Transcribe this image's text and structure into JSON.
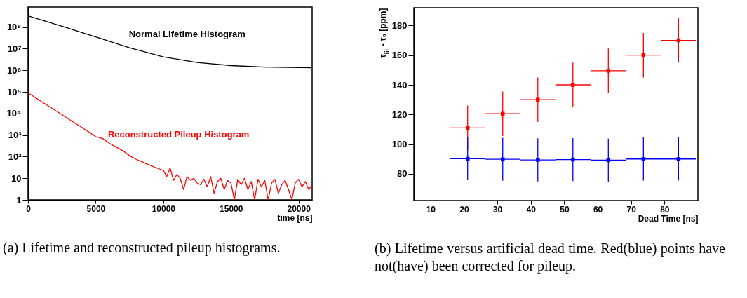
{
  "chart_data": [
    {
      "type": "line",
      "xlabel": "time [ns]",
      "log": "y",
      "grid": false,
      "marker": "none",
      "line_style": "solid",
      "xlim": [
        0,
        21000
      ],
      "xticks": [
        0,
        5000,
        10000,
        15000,
        20000
      ],
      "ylim": [
        1,
        850000000
      ],
      "yticks": [
        1,
        10,
        {
          "value": 100,
          "label": "10²"
        },
        {
          "value": 1000,
          "label": "10³"
        },
        {
          "value": 10000,
          "label": "10⁴"
        },
        {
          "value": 100000,
          "label": "10⁵"
        },
        {
          "value": 1000000,
          "label": "10⁶"
        },
        {
          "value": 10000000,
          "label": "10⁷"
        },
        {
          "value": 100000000,
          "label": "10⁸"
        }
      ],
      "series": [
        {
          "name": "Normal Lifetime Histogram",
          "color": "#000000",
          "x": [
            0,
            2500,
            5000,
            7500,
            10000,
            12500,
            15000,
            17500,
            21000
          ],
          "values": [
            330000000,
            110000000,
            35000000,
            11000000,
            4200000,
            2300000,
            1650000,
            1400000,
            1300000
          ]
        },
        {
          "name": "Reconstructed Pileup Histogram",
          "color": "#ff0000",
          "x": [
            0,
            1000,
            2000,
            3000,
            4000,
            5000,
            5500,
            6000,
            6500,
            7000,
            7500,
            8000,
            8500,
            9000,
            9500,
            10000,
            10250,
            10500,
            10750,
            11000,
            11250,
            11500,
            11750,
            12000,
            12250,
            12500,
            12750,
            13000,
            13250,
            13500,
            13750,
            14000,
            14250,
            14500,
            14750,
            15000,
            15250,
            15500,
            15750,
            16000,
            16250,
            16500,
            16750,
            17000,
            17250,
            17500,
            17750,
            18000,
            18250,
            18500,
            18750,
            19000,
            19250,
            19500,
            19750,
            20000,
            20250,
            20500,
            20750,
            21000
          ],
          "values": [
            90000,
            35000,
            14000,
            5500,
            2200,
            850,
            700,
            420,
            280,
            190,
            110,
            75,
            55,
            40,
            30,
            23,
            12,
            30,
            8,
            15,
            10,
            3,
            12,
            8,
            10,
            6,
            5,
            9,
            4,
            12,
            2,
            7,
            10,
            3,
            8,
            6,
            1,
            9,
            5,
            10,
            3,
            7,
            1,
            9,
            4,
            8,
            1,
            6,
            9,
            2,
            5,
            8,
            3,
            1,
            6,
            9,
            4,
            7,
            3,
            5
          ]
        }
      ],
      "annotations": [
        "(a) Lifetime and reconstructed pileup histograms."
      ]
    },
    {
      "type": "scatter",
      "xlabel": "Dead Time [ns]",
      "ylabel": "τ$_{fit}$ - τ₀ [ppm]",
      "grid": false,
      "marker": "square",
      "xlim": [
        5,
        90
      ],
      "xticks": [
        10,
        20,
        30,
        40,
        50,
        60,
        70,
        80
      ],
      "ylim": [
        62,
        192
      ],
      "yticks": [
        80,
        100,
        120,
        140,
        160,
        180
      ],
      "series": [
        {
          "color": "#ff0000",
          "x": [
            21.1,
            31.6,
            42.1,
            52.6,
            63.2,
            73.7,
            84.2
          ],
          "values": [
            111,
            120.5,
            130,
            140,
            149.5,
            160,
            170
          ],
          "errors": [
            15,
            15,
            15,
            15,
            15,
            15,
            15
          ],
          "xerrors": [
            5.25,
            5.25,
            5.25,
            5.25,
            5.25,
            5.25,
            5.25
          ]
        },
        {
          "color": "#0000ff",
          "x": [
            21.1,
            31.6,
            42.1,
            52.6,
            63.2,
            73.7,
            84.2
          ],
          "values": [
            90.2,
            89.8,
            89.4,
            89.6,
            89.2,
            90,
            90
          ],
          "errors": [
            14.5,
            14.5,
            14.5,
            14.5,
            14.5,
            14.5,
            14.5
          ],
          "xerrors": [
            5.25,
            5.25,
            5.25,
            5.25,
            5.25,
            5.25,
            5.25
          ]
        }
      ],
      "annotations": [
        "(b) Lifetime versus artificial dead time. Red(blue) points have not(have) been corrected for pileup."
      ]
    }
  ]
}
